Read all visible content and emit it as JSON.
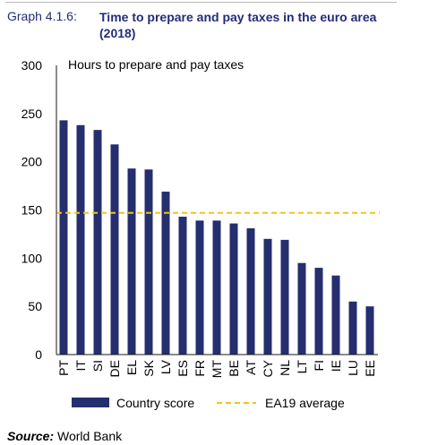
{
  "header": {
    "graph_number": "Graph 4.1.6:",
    "title": "Time to prepare and pay taxes in the euro area (2018)"
  },
  "footer": {
    "source_label": "Source:",
    "source_text": "World Bank"
  },
  "colors": {
    "bar": "#252e6e",
    "average_line": "#f3c318",
    "title_text": "#222d78",
    "axis": "#1a1a1a"
  },
  "chart_data": {
    "type": "bar",
    "title": "",
    "ylabel": "Hours to prepare and pay taxes",
    "xlabel": "",
    "ylim": [
      0,
      300
    ],
    "yticks": [
      0,
      50,
      100,
      150,
      200,
      250,
      300
    ],
    "grid": false,
    "legend_position": "bottom",
    "categories": [
      "PT",
      "IT",
      "SI",
      "DE",
      "EL",
      "SK",
      "LV",
      "ES",
      "FR",
      "MT",
      "BE",
      "AT",
      "CY",
      "NL",
      "LT",
      "FI",
      "IE",
      "LU",
      "EE"
    ],
    "series": [
      {
        "name": "Country score",
        "type": "bar",
        "values": [
          243,
          238,
          233,
          218,
          193,
          192,
          169,
          143,
          139,
          139,
          136,
          131,
          120,
          119,
          95,
          90,
          82,
          55,
          50
        ]
      },
      {
        "name": "EA19 average",
        "type": "line",
        "style": "dashed",
        "value": 147
      }
    ]
  }
}
